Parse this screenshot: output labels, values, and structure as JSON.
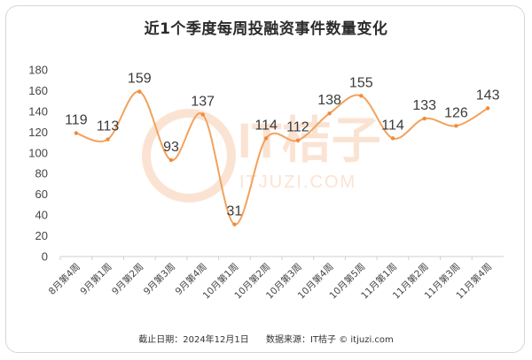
{
  "chart_data": {
    "type": "line",
    "title": "近1个季度每周投融资事件数量变化",
    "categories": [
      "8月第4周",
      "9月第1周",
      "9月第2周",
      "9月第3周",
      "9月第4周",
      "10月第1周",
      "10月第2周",
      "10月第3周",
      "10月第4周",
      "10月第5周",
      "11月第1周",
      "11月第2周",
      "11月第3周",
      "11月第4周"
    ],
    "values": [
      119,
      113,
      159,
      93,
      137,
      31,
      114,
      112,
      138,
      155,
      114,
      133,
      126,
      143
    ],
    "ylim": [
      0,
      180
    ],
    "yticks": [
      0,
      20,
      40,
      60,
      80,
      100,
      120,
      140,
      160,
      180
    ],
    "xlabel": "",
    "ylabel": "",
    "grid": false,
    "line_color": "#f2a25c",
    "marker_color": "#f28b3b",
    "watermark": "IT桔子",
    "watermark_url": "ITJUZI.COM"
  },
  "footer": {
    "date": "截止日期：2024年12月1日",
    "source": "数据来源：IT桔子 © itjuzi.com"
  }
}
